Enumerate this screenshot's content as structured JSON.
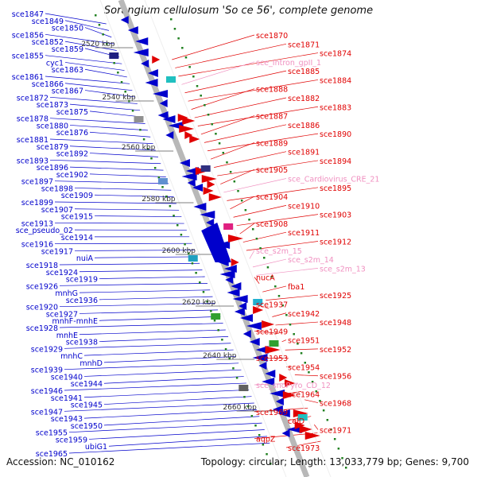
{
  "title": "Sorangium cellulosum 'So ce 56', complete genome",
  "accession_text": "Accession: NC_010162",
  "summary_text": "Topology: circular; Length: 13,033,779 bp; Genes: 9,700",
  "colors": {
    "left_strand": "#0000cc",
    "right_strand": "#e00000",
    "rna_label": "#f090c0",
    "backbone": "#909090",
    "tick": "#208020"
  },
  "kbp_marks": [
    "2520 kbp",
    "2540 kbp",
    "2560 kbp",
    "2580 kbp",
    "2600 kbp",
    "2620 kbp",
    "2640 kbp",
    "2660 kbp"
  ],
  "left_labels": [
    "sce1847",
    "sce1849",
    "sce1850",
    "sce1856",
    "sce1852",
    "sce1859",
    "sce1855",
    "cyc1",
    "sce1863",
    "sce1861",
    "sce1866",
    "sce1867",
    "sce1872",
    "sce1873",
    "sce1875",
    "sce1878",
    "sce1880",
    "sce1876",
    "sce1881",
    "sce1879",
    "sce1892",
    "sce1893",
    "sce1896",
    "sce1902",
    "sce1897",
    "sce1898",
    "sce1909",
    "sce1899",
    "sce1907",
    "sce1915",
    "sce1913",
    "sce_pseudo_02",
    "sce1914",
    "sce1916",
    "sce1917",
    "nuiA",
    "sce1918",
    "sce1924",
    "sce1919",
    "sce1926",
    "mnhG",
    "sce1936",
    "sce1920",
    "sce1927",
    "mnhF-mnhE",
    "sce1928",
    "mnhE",
    "sce1938",
    "sce1929",
    "mnhC",
    "mnhD",
    "sce1939",
    "sce1940",
    "sce1944",
    "sce1946",
    "sce1941",
    "sce1945",
    "sce1947",
    "sce1943",
    "sce1950",
    "sce1955",
    "sce1959",
    "ubiG1",
    "sce1965"
  ],
  "right_labels": [
    "sce1870",
    "sce1871",
    "sce1874",
    "sce_Intron_gpII_1",
    "sce1885",
    "sce1884",
    "sce1888",
    "sce1882",
    "sce1883",
    "sce1887",
    "sce1886",
    "sce1890",
    "sce1889",
    "sce1891",
    "sce1894",
    "sce1905",
    "sce_Cardiovirus_CRE_21",
    "sce1895",
    "sce1904",
    "sce1910",
    "sce1903",
    "sce1908",
    "sce1911",
    "sce1912",
    "sce_s2m_15",
    "sce_s2m_14",
    "sce_s2m_13",
    "nucA",
    "fba1",
    "sce1925",
    "sce1937",
    "sce1942",
    "sce1948",
    "sce1949",
    "sce1951",
    "sce1952",
    "sce1953",
    "sce1954",
    "sce1956",
    "sce_snoPyro_CD_12",
    "sce1964",
    "sce1968",
    "sce1969",
    "celD",
    "sce1971",
    "aqpZ",
    "sce1973"
  ]
}
